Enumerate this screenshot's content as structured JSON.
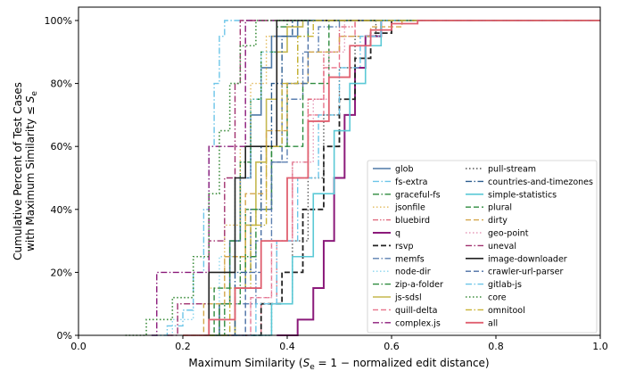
{
  "chart_data": {
    "type": "line",
    "subtype": "step-cdf",
    "xlabel_pre": "Maximum Similarity (",
    "xlabel_math": "S",
    "xlabel_sub": "e",
    "xlabel_post": " = 1 − normalized edit distance)",
    "ylabel_line1": "Cumulative Percent of Test Cases",
    "ylabel_line2_pre": "with Maximum Similarity  ≤ ",
    "ylabel_line2_math": "S",
    "ylabel_line2_sub": "e",
    "xlim": [
      0.0,
      1.0
    ],
    "ylim": [
      0,
      100
    ],
    "x_ticks": [
      0.0,
      0.2,
      0.4,
      0.6,
      0.8,
      1.0
    ],
    "x_tick_labels": [
      "0.0",
      "0.2",
      "0.4",
      "0.6",
      "0.8",
      "1.0"
    ],
    "y_ticks": [
      0,
      20,
      40,
      60,
      80,
      100
    ],
    "y_tick_labels": [
      "0%",
      "20%",
      "40%",
      "60%",
      "80%",
      "100%"
    ],
    "grid": false,
    "legend_position": "bottom-right",
    "legend_columns": 2,
    "series": [
      {
        "name": "glob",
        "color": "#4e79a7",
        "dash": "solid",
        "width": 1.6,
        "points": [
          [
            0.24,
            0
          ],
          [
            0.27,
            10
          ],
          [
            0.29,
            30
          ],
          [
            0.31,
            50
          ],
          [
            0.33,
            70
          ],
          [
            0.35,
            85
          ],
          [
            0.37,
            95
          ],
          [
            0.42,
            100
          ]
        ]
      },
      {
        "name": "fs-extra",
        "color": "#6cc5e8",
        "dash": "dashdot",
        "width": 1.4,
        "points": [
          [
            0.14,
            0
          ],
          [
            0.17,
            3
          ],
          [
            0.2,
            8
          ],
          [
            0.22,
            20
          ],
          [
            0.24,
            40
          ],
          [
            0.25,
            60
          ],
          [
            0.26,
            80
          ],
          [
            0.27,
            95
          ],
          [
            0.28,
            100
          ]
        ]
      },
      {
        "name": "graceful-fs",
        "color": "#2e8b3e",
        "dash": "dashdot",
        "width": 1.4,
        "points": [
          [
            0.24,
            0
          ],
          [
            0.27,
            10
          ],
          [
            0.29,
            30
          ],
          [
            0.31,
            55
          ],
          [
            0.33,
            75
          ],
          [
            0.35,
            90
          ],
          [
            0.38,
            98
          ],
          [
            0.4,
            100
          ]
        ]
      },
      {
        "name": "jsonfile",
        "color": "#e2b95b",
        "dash": "dot",
        "width": 1.4,
        "points": [
          [
            0.22,
            0
          ],
          [
            0.25,
            15
          ],
          [
            0.28,
            35
          ],
          [
            0.31,
            60
          ],
          [
            0.33,
            80
          ],
          [
            0.36,
            95
          ],
          [
            0.38,
            100
          ]
        ]
      },
      {
        "name": "bluebird",
        "color": "#e06a7e",
        "dash": "dashdotdot",
        "width": 1.4,
        "points": [
          [
            0.3,
            0
          ],
          [
            0.35,
            10
          ],
          [
            0.38,
            30
          ],
          [
            0.41,
            55
          ],
          [
            0.44,
            75
          ],
          [
            0.47,
            90
          ],
          [
            0.5,
            98
          ],
          [
            0.53,
            100
          ]
        ]
      },
      {
        "name": "q",
        "color": "#8b1a7a",
        "dash": "solid",
        "width": 2.0,
        "points": [
          [
            0.38,
            0
          ],
          [
            0.42,
            5
          ],
          [
            0.45,
            15
          ],
          [
            0.47,
            30
          ],
          [
            0.49,
            50
          ],
          [
            0.51,
            70
          ],
          [
            0.53,
            85
          ],
          [
            0.55,
            95
          ],
          [
            0.58,
            100
          ]
        ]
      },
      {
        "name": "rsvp",
        "color": "#222222",
        "dash": "dashed",
        "width": 1.8,
        "points": [
          [
            0.3,
            0
          ],
          [
            0.35,
            10
          ],
          [
            0.39,
            20
          ],
          [
            0.43,
            40
          ],
          [
            0.47,
            60
          ],
          [
            0.5,
            75
          ],
          [
            0.53,
            88
          ],
          [
            0.56,
            96
          ],
          [
            0.6,
            100
          ]
        ]
      },
      {
        "name": "memfs",
        "color": "#5b7fb0",
        "dash": "dashdot",
        "width": 1.4,
        "points": [
          [
            0.26,
            0
          ],
          [
            0.3,
            10
          ],
          [
            0.34,
            30
          ],
          [
            0.37,
            55
          ],
          [
            0.4,
            75
          ],
          [
            0.43,
            90
          ],
          [
            0.46,
            98
          ],
          [
            0.5,
            100
          ]
        ]
      },
      {
        "name": "node-dir",
        "color": "#8ad6ee",
        "dash": "dot",
        "width": 1.4,
        "points": [
          [
            0.15,
            0
          ],
          [
            0.18,
            5
          ],
          [
            0.22,
            10
          ],
          [
            0.27,
            25
          ],
          [
            0.3,
            50
          ],
          [
            0.33,
            75
          ],
          [
            0.35,
            90
          ],
          [
            0.38,
            100
          ]
        ]
      },
      {
        "name": "zip-a-folder",
        "color": "#2e8b3e",
        "dash": "dashdot",
        "width": 1.4,
        "points": [
          [
            0.25,
            0
          ],
          [
            0.28,
            10
          ],
          [
            0.31,
            25
          ],
          [
            0.34,
            40
          ],
          [
            0.37,
            60
          ],
          [
            0.4,
            80
          ],
          [
            0.42,
            95
          ],
          [
            0.44,
            100
          ]
        ]
      },
      {
        "name": "js-sdsl",
        "color": "#c5b84f",
        "dash": "solid",
        "width": 1.6,
        "points": [
          [
            0.27,
            0
          ],
          [
            0.3,
            15
          ],
          [
            0.32,
            35
          ],
          [
            0.34,
            55
          ],
          [
            0.36,
            75
          ],
          [
            0.38,
            90
          ],
          [
            0.4,
            98
          ],
          [
            0.43,
            100
          ]
        ]
      },
      {
        "name": "quill-delta",
        "color": "#e8738a",
        "dash": "dashed",
        "width": 1.4,
        "points": [
          [
            0.29,
            0
          ],
          [
            0.33,
            12
          ],
          [
            0.37,
            30
          ],
          [
            0.41,
            50
          ],
          [
            0.44,
            70
          ],
          [
            0.47,
            85
          ],
          [
            0.5,
            95
          ],
          [
            0.53,
            100
          ]
        ]
      },
      {
        "name": "complex.js",
        "color": "#8b1a7a",
        "dash": "dashdot",
        "width": 1.4,
        "points": [
          [
            0.14,
            0
          ],
          [
            0.15,
            20
          ],
          [
            0.24,
            20
          ],
          [
            0.25,
            60
          ],
          [
            0.31,
            60
          ],
          [
            0.32,
            100
          ]
        ]
      },
      {
        "name": "pull-stream",
        "color": "#555555",
        "dash": "dot",
        "width": 1.4,
        "points": [
          [
            0.33,
            0
          ],
          [
            0.37,
            10
          ],
          [
            0.41,
            30
          ],
          [
            0.44,
            50
          ],
          [
            0.47,
            70
          ],
          [
            0.5,
            85
          ],
          [
            0.53,
            95
          ],
          [
            0.57,
            100
          ]
        ]
      },
      {
        "name": "countries-and-timezones",
        "color": "#2d5d8f",
        "dash": "dashdot",
        "width": 1.4,
        "points": [
          [
            0.27,
            0
          ],
          [
            0.3,
            20
          ],
          [
            0.33,
            40
          ],
          [
            0.35,
            60
          ],
          [
            0.37,
            80
          ],
          [
            0.39,
            95
          ],
          [
            0.41,
            100
          ]
        ]
      },
      {
        "name": "simple-statistics",
        "color": "#5bc9d6",
        "dash": "solid",
        "width": 1.6,
        "points": [
          [
            0.33,
            0
          ],
          [
            0.37,
            10
          ],
          [
            0.41,
            25
          ],
          [
            0.45,
            45
          ],
          [
            0.49,
            65
          ],
          [
            0.52,
            80
          ],
          [
            0.55,
            92
          ],
          [
            0.58,
            100
          ]
        ]
      },
      {
        "name": "plural",
        "color": "#2e8b3e",
        "dash": "dashed",
        "width": 1.4,
        "points": [
          [
            0.25,
            0
          ],
          [
            0.26,
            15
          ],
          [
            0.31,
            15
          ],
          [
            0.32,
            40
          ],
          [
            0.36,
            40
          ],
          [
            0.37,
            60
          ],
          [
            0.42,
            60
          ],
          [
            0.43,
            80
          ],
          [
            0.47,
            80
          ],
          [
            0.48,
            100
          ]
        ]
      },
      {
        "name": "dirty",
        "color": "#d4a64a",
        "dash": "dashed",
        "width": 1.4,
        "points": [
          [
            0.2,
            0
          ],
          [
            0.24,
            10
          ],
          [
            0.28,
            25
          ],
          [
            0.32,
            45
          ],
          [
            0.36,
            65
          ],
          [
            0.4,
            80
          ],
          [
            0.44,
            90
          ],
          [
            0.5,
            95
          ],
          [
            0.56,
            98
          ],
          [
            0.62,
            100
          ]
        ]
      },
      {
        "name": "geo-point",
        "color": "#e69ab8",
        "dash": "dot",
        "width": 1.4,
        "points": [
          [
            0.29,
            0
          ],
          [
            0.33,
            12
          ],
          [
            0.37,
            30
          ],
          [
            0.41,
            55
          ],
          [
            0.45,
            75
          ],
          [
            0.48,
            90
          ],
          [
            0.51,
            100
          ]
        ]
      },
      {
        "name": "uneval",
        "color": "#a0306e",
        "dash": "dashdot",
        "width": 1.4,
        "points": [
          [
            0.17,
            0
          ],
          [
            0.19,
            10
          ],
          [
            0.23,
            10
          ],
          [
            0.25,
            30
          ],
          [
            0.28,
            50
          ],
          [
            0.3,
            80
          ],
          [
            0.31,
            100
          ]
        ]
      },
      {
        "name": "image-downloader",
        "color": "#222222",
        "dash": "solid",
        "width": 1.6,
        "points": [
          [
            0.25,
            0
          ],
          [
            0.25,
            20
          ],
          [
            0.3,
            20
          ],
          [
            0.3,
            50
          ],
          [
            0.32,
            50
          ],
          [
            0.32,
            60
          ],
          [
            0.38,
            60
          ],
          [
            0.38,
            100
          ]
        ]
      },
      {
        "name": "crawler-url-parser",
        "color": "#4a6fa5",
        "dash": "dashed",
        "width": 1.4,
        "points": [
          [
            0.28,
            0
          ],
          [
            0.32,
            20
          ],
          [
            0.35,
            40
          ],
          [
            0.37,
            55
          ],
          [
            0.39,
            80
          ],
          [
            0.43,
            80
          ],
          [
            0.44,
            100
          ]
        ]
      },
      {
        "name": "gitlab-js",
        "color": "#6cc5e8",
        "dash": "dashdot",
        "width": 1.4,
        "points": [
          [
            0.3,
            0
          ],
          [
            0.34,
            10
          ],
          [
            0.38,
            30
          ],
          [
            0.42,
            50
          ],
          [
            0.46,
            70
          ],
          [
            0.5,
            85
          ],
          [
            0.54,
            95
          ],
          [
            0.58,
            100
          ]
        ]
      },
      {
        "name": "core",
        "color": "#3a8c3a",
        "dash": "dot",
        "width": 1.6,
        "points": [
          [
            0.09,
            0
          ],
          [
            0.13,
            5
          ],
          [
            0.18,
            12
          ],
          [
            0.22,
            25
          ],
          [
            0.25,
            45
          ],
          [
            0.27,
            65
          ],
          [
            0.29,
            80
          ],
          [
            0.31,
            92
          ],
          [
            0.34,
            100
          ]
        ]
      },
      {
        "name": "omnitool",
        "color": "#c9b235",
        "dash": "dashdot",
        "width": 1.4,
        "points": [
          [
            0.25,
            0
          ],
          [
            0.29,
            15
          ],
          [
            0.33,
            35
          ],
          [
            0.36,
            60
          ],
          [
            0.39,
            80
          ],
          [
            0.42,
            95
          ],
          [
            0.45,
            100
          ]
        ]
      },
      {
        "name": "all",
        "color": "#e06070",
        "dash": "solid",
        "width": 1.8,
        "points": [
          [
            0.2,
            0
          ],
          [
            0.25,
            5
          ],
          [
            0.3,
            15
          ],
          [
            0.35,
            30
          ],
          [
            0.4,
            50
          ],
          [
            0.44,
            68
          ],
          [
            0.48,
            82
          ],
          [
            0.52,
            92
          ],
          [
            0.56,
            97
          ],
          [
            0.6,
            99
          ],
          [
            0.65,
            100
          ]
        ]
      }
    ]
  }
}
